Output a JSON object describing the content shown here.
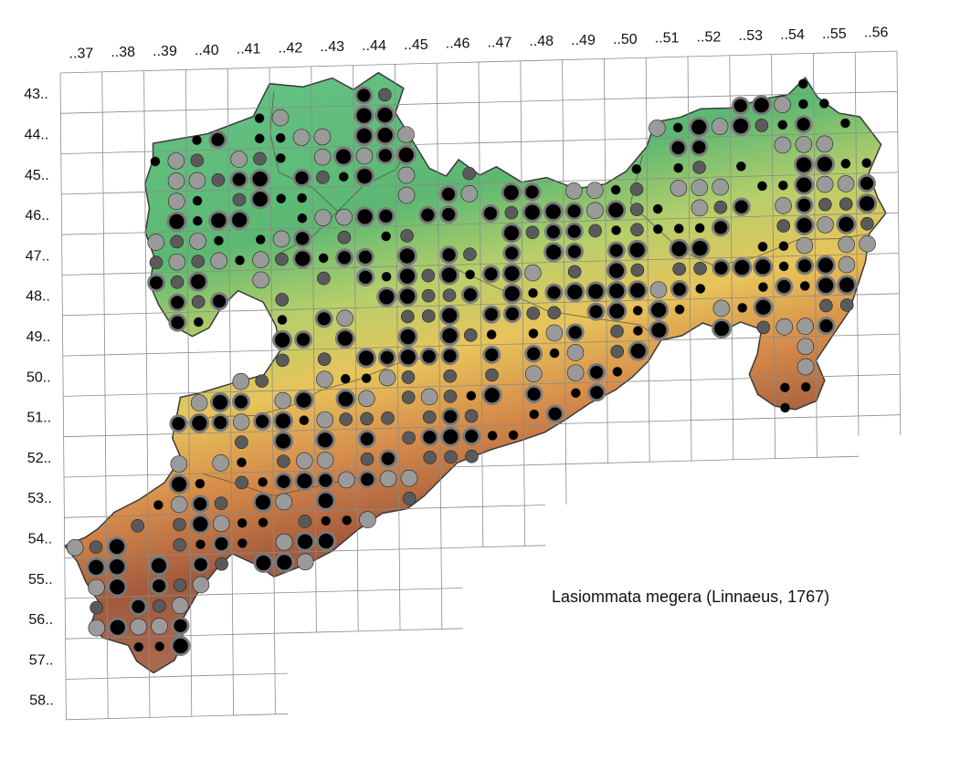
{
  "species_caption": "Lasiommata megera (Linnaeus, 1767)",
  "grid": {
    "columns": [
      "..37",
      "..38",
      "..39",
      "..40",
      "..41",
      "..42",
      "..43",
      "..44",
      "..45",
      "..46",
      "..47",
      "..48",
      "..49",
      "..50",
      "..51",
      "..52",
      "..53",
      "..54",
      "..55",
      "..56"
    ],
    "rows": [
      "43..",
      "44..",
      "45..",
      "46..",
      "47..",
      "48..",
      "49..",
      "50..",
      "51..",
      "52..",
      "53..",
      "54..",
      "55..",
      "56..",
      "57..",
      "58.."
    ]
  },
  "colors": {
    "grid_line": "#8a8a8a",
    "relief_low": "#5fbf7a",
    "relief_mid": "#e8c45a",
    "relief_high": "#a35a3c",
    "relief_peak": "#c9c0bb",
    "marker_black": "#000000",
    "marker_dark_gray": "#5a5a5a",
    "marker_light_gray": "#9a9a9a",
    "district_border": "#4a4a4a"
  }
}
